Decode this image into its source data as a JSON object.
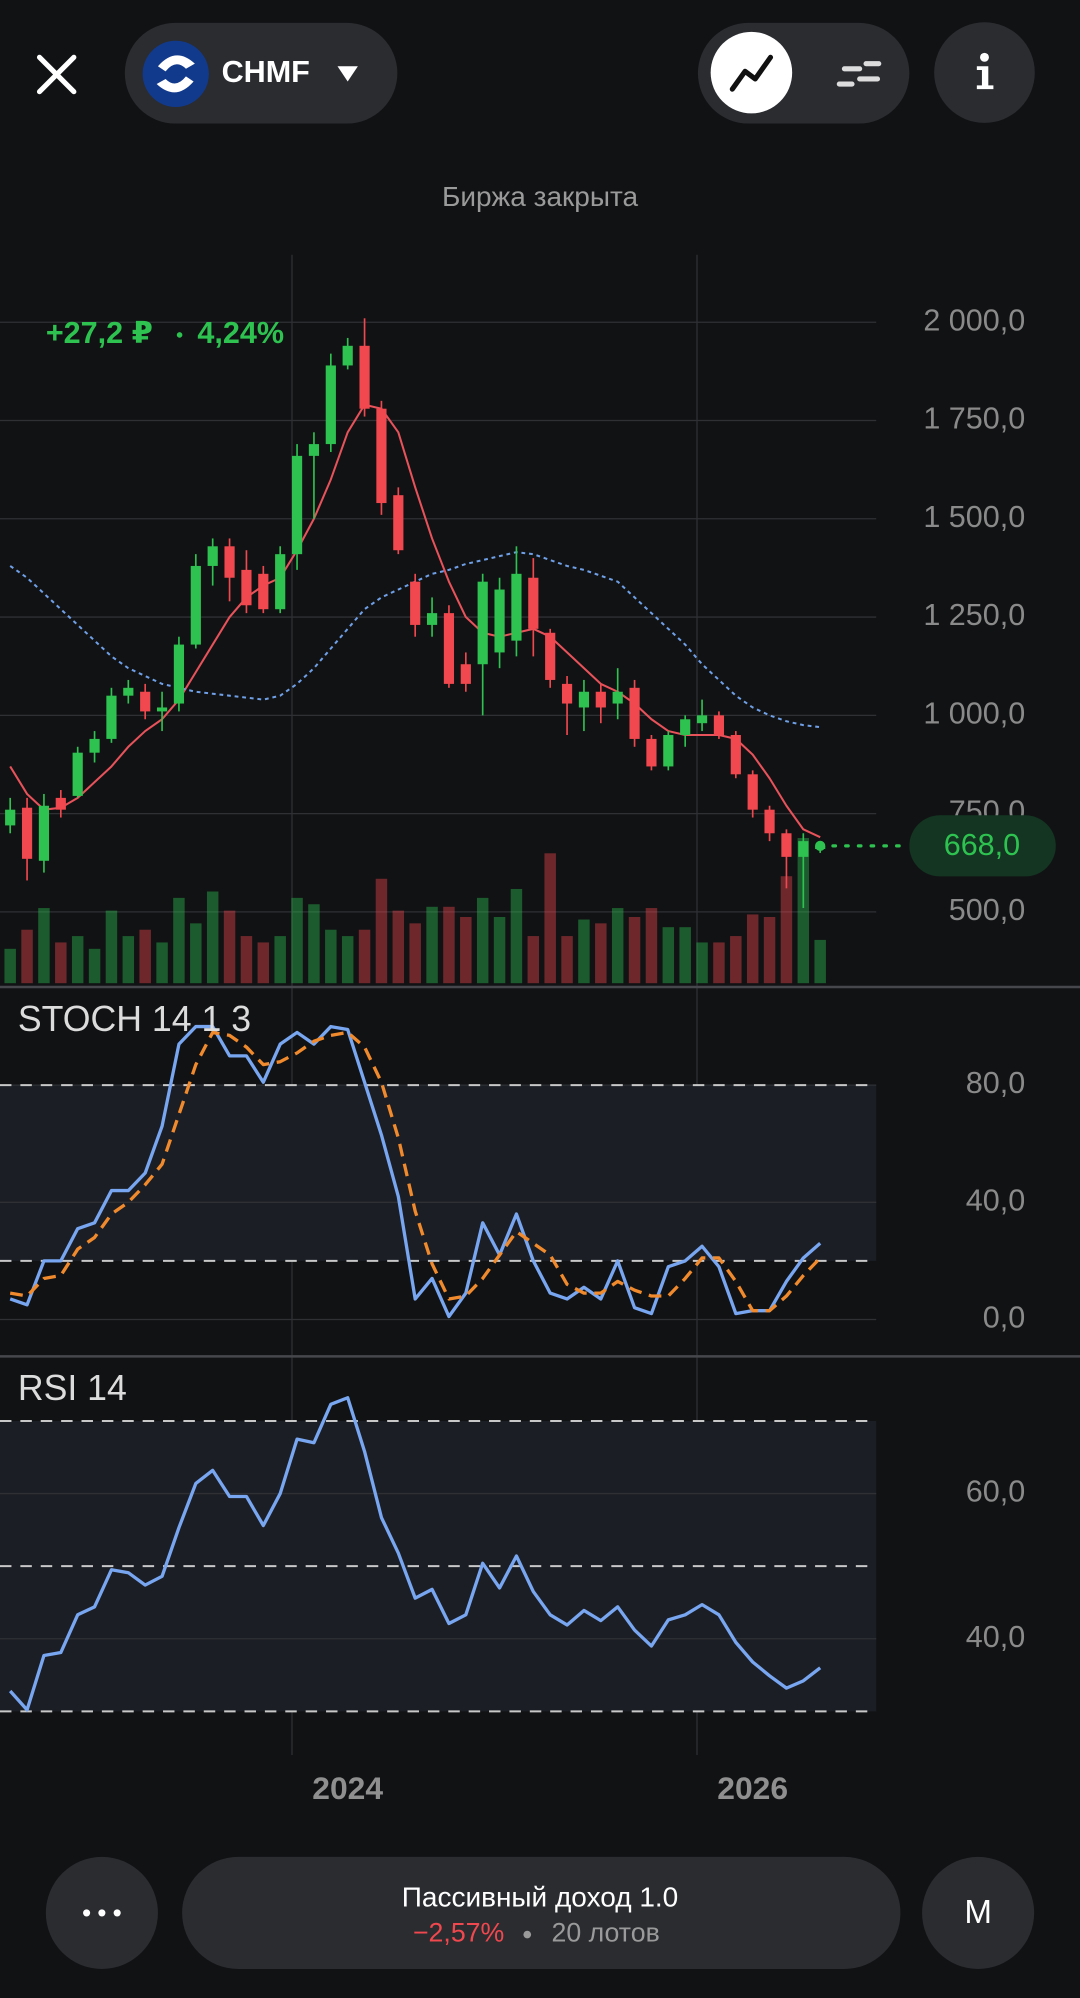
{
  "header": {
    "ticker": "CHMF",
    "market_status": "Биржа закрыта"
  },
  "chart_data": [
    {
      "type": "candlestick",
      "change": "+27,2 ₽",
      "change_pct": "4,24%",
      "categories": [
        null,
        null,
        null,
        null,
        null,
        null,
        null,
        null,
        null,
        null,
        null,
        null,
        null,
        null,
        null,
        null,
        null,
        null,
        null,
        null,
        "2024",
        null,
        null,
        null,
        null,
        null,
        null,
        null,
        null,
        null,
        null,
        null,
        null,
        null,
        null,
        null,
        null,
        null,
        null,
        null,
        null,
        null,
        null,
        null,
        "2026",
        null,
        null,
        null,
        null
      ],
      "open": [
        720,
        765,
        630,
        790,
        795,
        905,
        940,
        1050,
        1060,
        1010,
        1030,
        1180,
        1380,
        1430,
        1370,
        1360,
        1270,
        1410,
        1660,
        1690,
        1890,
        1940,
        1780,
        1560,
        1340,
        1230,
        1260,
        1130,
        1130,
        1160,
        1190,
        1350,
        1210,
        1080,
        1020,
        1060,
        1030,
        1070,
        940,
        870,
        950,
        980,
        1000,
        950,
        850,
        760,
        700,
        640,
        660
      ],
      "high": [
        790,
        790,
        800,
        810,
        920,
        960,
        1070,
        1090,
        1080,
        1060,
        1200,
        1410,
        1450,
        1450,
        1420,
        1380,
        1430,
        1690,
        1720,
        1920,
        1960,
        2010,
        1800,
        1580,
        1360,
        1300,
        1280,
        1160,
        1360,
        1350,
        1430,
        1400,
        1220,
        1100,
        1090,
        1080,
        1120,
        1090,
        950,
        960,
        1000,
        1040,
        1010,
        960,
        860,
        770,
        710,
        700,
        680
      ],
      "low": [
        700,
        580,
        600,
        740,
        790,
        880,
        930,
        1030,
        990,
        960,
        1010,
        1170,
        1330,
        1290,
        1260,
        1260,
        1260,
        1370,
        1500,
        1670,
        1880,
        1760,
        1510,
        1410,
        1200,
        1200,
        1070,
        1060,
        1000,
        1120,
        1150,
        1150,
        1070,
        950,
        960,
        980,
        990,
        920,
        860,
        860,
        920,
        960,
        940,
        840,
        740,
        680,
        560,
        510,
        650
      ],
      "close": [
        760,
        635,
        770,
        760,
        905,
        940,
        1050,
        1070,
        1010,
        1020,
        1180,
        1380,
        1430,
        1350,
        1280,
        1270,
        1410,
        1660,
        1690,
        1890,
        1940,
        1780,
        1540,
        1420,
        1230,
        1260,
        1080,
        1080,
        1340,
        1320,
        1360,
        1220,
        1090,
        1030,
        1060,
        1020,
        1060,
        940,
        870,
        950,
        990,
        1000,
        950,
        850,
        760,
        700,
        640,
        680,
        668
      ],
      "up_color": "#2ec250",
      "down_color": "#f0484e",
      "volume": [
        27,
        42,
        59,
        32,
        37,
        27,
        57,
        37,
        42,
        32,
        67,
        47,
        72,
        57,
        37,
        32,
        37,
        67,
        62,
        42,
        37,
        42,
        82,
        57,
        47,
        60,
        60,
        52,
        67,
        52,
        74,
        37,
        102,
        37,
        50,
        47,
        59,
        52,
        59,
        44,
        44,
        32,
        32,
        37,
        54,
        52,
        84,
        114,
        34
      ],
      "overlays": [
        {
          "color": "#e8525a",
          "dashed": false,
          "values": [
            870,
            800,
            760,
            765,
            790,
            830,
            870,
            920,
            960,
            990,
            1040,
            1110,
            1180,
            1250,
            1300,
            1330,
            1350,
            1420,
            1500,
            1600,
            1720,
            1790,
            1780,
            1720,
            1580,
            1450,
            1340,
            1250,
            1210,
            1200,
            1210,
            1220,
            1200,
            1160,
            1120,
            1080,
            1060,
            1030,
            990,
            960,
            950,
            950,
            950,
            940,
            900,
            840,
            770,
            710,
            690
          ]
        },
        {
          "color": "#6f9fe6",
          "dashed": true,
          "values": [
            1380,
            1350,
            1310,
            1270,
            1230,
            1190,
            1150,
            1120,
            1100,
            1080,
            1070,
            1060,
            1055,
            1050,
            1045,
            1040,
            1050,
            1080,
            1120,
            1170,
            1220,
            1270,
            1300,
            1320,
            1340,
            1360,
            1370,
            1385,
            1395,
            1405,
            1415,
            1410,
            1395,
            1380,
            1370,
            1355,
            1340,
            1300,
            1260,
            1220,
            1180,
            1130,
            1090,
            1050,
            1020,
            1000,
            985,
            975,
            970
          ]
        }
      ],
      "ylim": [
        318.6,
        2171.7
      ],
      "yticks": [
        {
          "value": 500,
          "label": "500,0"
        },
        {
          "value": 750,
          "label": "750,0"
        },
        {
          "value": 1000,
          "label": "1 000,0"
        },
        {
          "value": 1250,
          "label": "1 250,0"
        },
        {
          "value": 1500,
          "label": "1 500,0"
        },
        {
          "value": 1750,
          "label": "1 750,0"
        },
        {
          "value": 2000,
          "label": "2 000,0"
        }
      ],
      "last_price": {
        "value": 668,
        "label": "668,0"
      },
      "grid": true
    },
    {
      "type": "line",
      "title": "STOCH 14 1 3",
      "series": [
        {
          "color": "#78a6f0",
          "dashed": false,
          "values": [
            7,
            5,
            20,
            20,
            31,
            33,
            44,
            44,
            50,
            66,
            94,
            100,
            100,
            90,
            90,
            81,
            94,
            98,
            94,
            100,
            99,
            81,
            63,
            42,
            7,
            14,
            1,
            9,
            33,
            22,
            36,
            20,
            9,
            7,
            11,
            7,
            20,
            4,
            2,
            18,
            20,
            25,
            18,
            2,
            3,
            3,
            13,
            21,
            26
          ]
        },
        {
          "color": "#f08a2c",
          "dashed": true,
          "values": [
            9,
            8,
            14,
            15,
            24,
            28,
            36,
            40,
            46,
            53,
            70,
            87,
            98,
            97,
            93,
            87,
            88,
            91,
            95,
            97,
            98,
            93,
            81,
            62,
            37,
            19,
            7,
            8,
            14,
            22,
            30,
            26,
            22,
            12,
            9,
            9,
            13,
            10,
            8,
            8,
            14,
            21,
            21,
            13,
            3,
            3,
            8,
            15,
            21
          ]
        }
      ],
      "ylim": [
        -12.6,
        113.5
      ],
      "yticks": [
        {
          "value": 0,
          "label": "0,0"
        },
        {
          "value": 40,
          "label": "40,0"
        },
        {
          "value": 80,
          "label": "80,0"
        }
      ],
      "levels": [
        80,
        20
      ],
      "grid": true
    },
    {
      "type": "line",
      "title": "RSI 14",
      "series": [
        {
          "color": "#78a6f0",
          "dashed": false,
          "values": [
            32.8,
            30.2,
            37.7,
            38.1,
            43.3,
            44.4,
            49.5,
            49.1,
            47.4,
            48.6,
            55.3,
            61.4,
            63.2,
            59.6,
            59.6,
            55.6,
            60,
            67.5,
            67,
            72.3,
            73.2,
            65.8,
            56.7,
            51.8,
            45.6,
            46.8,
            42.1,
            43.3,
            50.4,
            47,
            51.4,
            46.5,
            43.3,
            41.9,
            43.9,
            42.5,
            44.4,
            41.2,
            39,
            42.6,
            43.3,
            44.7,
            43.3,
            39.5,
            36.8,
            34.9,
            33.2,
            34.2,
            36
          ]
        }
      ],
      "ylim": [
        28.9,
        78.9
      ],
      "yticks": [
        {
          "value": 40,
          "label": "40,0"
        },
        {
          "value": 60,
          "label": "60,0"
        }
      ],
      "levels": [
        70,
        50,
        30
      ],
      "grid": true
    }
  ],
  "footer": {
    "strategy": "Пассивный доход 1.0",
    "return": "−2,57%",
    "lots": "20 лотов",
    "period": "M"
  }
}
